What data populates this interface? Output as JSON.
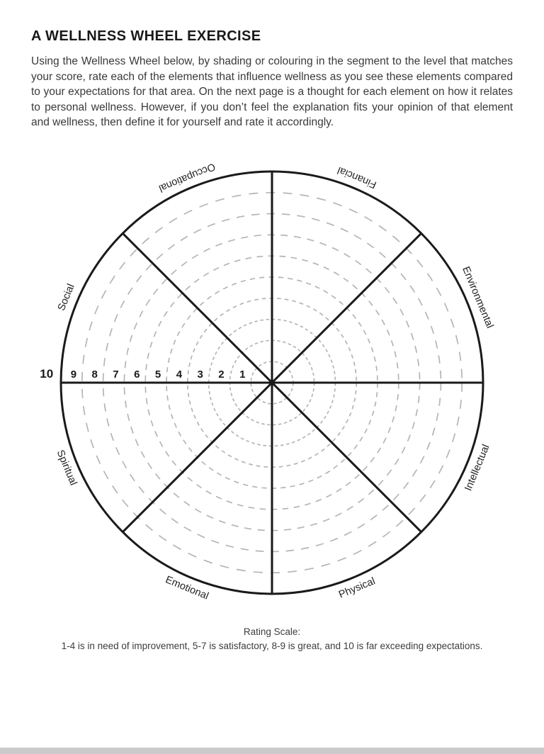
{
  "page": {
    "title": "A WELLNESS WHEEL EXERCISE",
    "intro": "Using the Wellness Wheel below, by shading or colouring in the segment to the level that matches your score, rate each of the elements that influence wellness as you see these elements compared to your expectations for that area. On the next page is a thought for each element on how it relates to personal wellness. However, if you don’t feel the explanation fits your opinion of that element and wellness, then define it for yourself and rate it accordingly.",
    "footer": {
      "rating_scale_title": "Rating Scale:",
      "rating_scale_text": "1-4 is in need of improvement, 5-7 is satisfactory, 8-9 is great, and 10 is far exceeding expectations."
    }
  },
  "wheel": {
    "description": "Blank wellness wheel with 8 segments and a 1-10 rating scale of concentric dashed rings",
    "rings_total": 10,
    "scale_numbers": [
      "10",
      "9",
      "8",
      "7",
      "6",
      "5",
      "4",
      "3",
      "2",
      "1"
    ],
    "spoke_angles": [
      0,
      45,
      90,
      135
    ],
    "segments": [
      {
        "label": "Financial",
        "angle": 67.5,
        "rotation": -157.5
      },
      {
        "label": "Environmental",
        "angle": 22.5,
        "rotation": 67.5
      },
      {
        "label": "Intellectual",
        "angle": 337.5,
        "rotation": -67.5
      },
      {
        "label": "Physical",
        "angle": 292.5,
        "rotation": -22.5
      },
      {
        "label": "Emotional",
        "angle": 247.5,
        "rotation": 22.5
      },
      {
        "label": "Spiritual",
        "angle": 202.5,
        "rotation": 67.5
      },
      {
        "label": "Social",
        "angle": 157.5,
        "rotation": -67.5
      },
      {
        "label": "Occupational",
        "angle": 112.5,
        "rotation": 157.5
      }
    ],
    "colors": {
      "line": "#1a1a1a",
      "ring_dashed": "#b5b5b5",
      "label": "#222222",
      "number": "#1a1a1a"
    }
  }
}
